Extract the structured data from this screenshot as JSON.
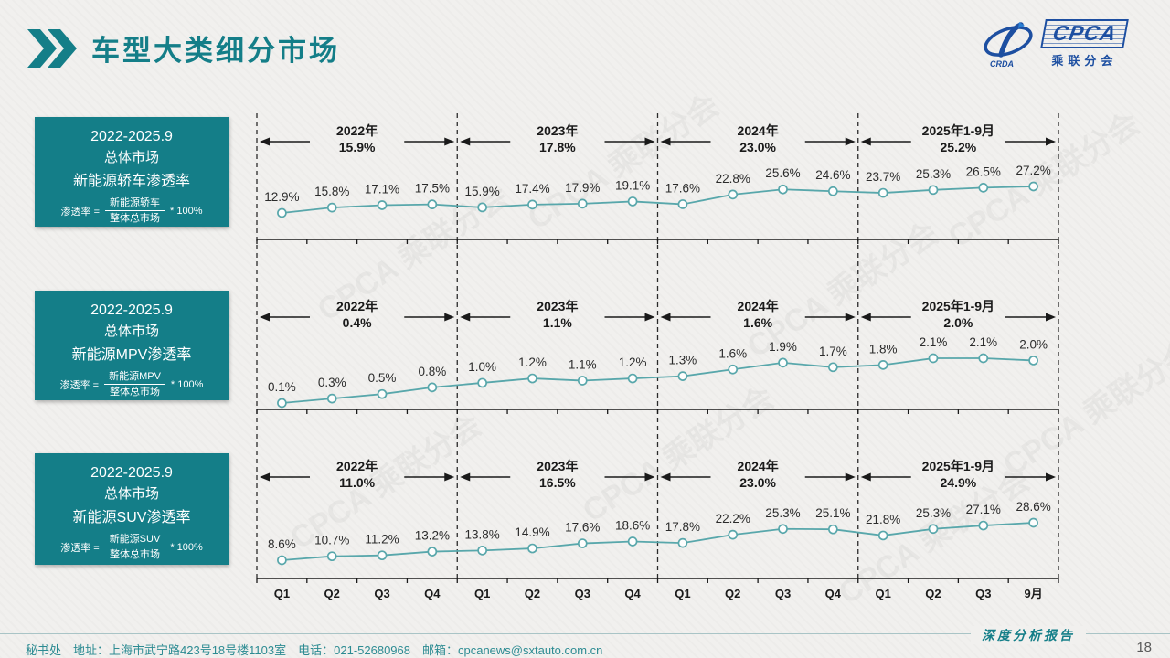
{
  "header": {
    "title": "车型大类细分市场"
  },
  "logo": {
    "text": "CPCA",
    "subtext": "乘联分会",
    "mark": "CRDA"
  },
  "watermark_text": "CPCA 乘联分会",
  "colors": {
    "accent": "#147E88",
    "line": "#58A7AB",
    "logo_blue": "#1D4FA1",
    "footer_text": "#2C8B92"
  },
  "chart_data": [
    {
      "type": "line",
      "title": "2022-2025.9 总体市场 新能源轿车渗透率",
      "panel": {
        "period": "2022-2025.9",
        "market": "总体市场",
        "metric": "新能源轿车渗透率",
        "formula_lhs": "渗透率 =",
        "formula_num": "新能源轿车",
        "formula_den": "整体总市场",
        "formula_suffix": "* 100%"
      },
      "categories": [
        "Q1",
        "Q2",
        "Q3",
        "Q4",
        "Q1",
        "Q2",
        "Q3",
        "Q4",
        "Q1",
        "Q2",
        "Q3",
        "Q4",
        "Q1",
        "Q2",
        "Q3",
        "9月"
      ],
      "values": [
        12.9,
        15.8,
        17.1,
        17.5,
        15.9,
        17.4,
        17.9,
        19.1,
        17.6,
        22.8,
        25.6,
        24.6,
        23.7,
        25.3,
        26.5,
        27.2
      ],
      "unit": "%",
      "ylim": [
        0,
        30
      ],
      "legend": "none",
      "grid": "off",
      "sections": [
        {
          "label": "2022年",
          "avg": "15.9%"
        },
        {
          "label": "2023年",
          "avg": "17.8%"
        },
        {
          "label": "2024年",
          "avg": "23.0%"
        },
        {
          "label": "2025年1-9月",
          "avg": "25.2%"
        }
      ]
    },
    {
      "type": "line",
      "title": "2022-2025.9 总体市场 新能源MPV渗透率",
      "panel": {
        "period": "2022-2025.9",
        "market": "总体市场",
        "metric": "新能源MPV渗透率",
        "formula_lhs": "渗透率 =",
        "formula_num": "新能源MPV",
        "formula_den": "整体总市场",
        "formula_suffix": "* 100%"
      },
      "categories": [
        "Q1",
        "Q2",
        "Q3",
        "Q4",
        "Q1",
        "Q2",
        "Q3",
        "Q4",
        "Q1",
        "Q2",
        "Q3",
        "Q4",
        "Q1",
        "Q2",
        "Q3",
        "9月"
      ],
      "values": [
        0.1,
        0.3,
        0.5,
        0.8,
        1.0,
        1.2,
        1.1,
        1.2,
        1.3,
        1.6,
        1.9,
        1.7,
        1.8,
        2.1,
        2.1,
        2.0
      ],
      "unit": "%",
      "ylim": [
        0,
        2.5
      ],
      "legend": "none",
      "grid": "off",
      "sections": [
        {
          "label": "2022年",
          "avg": "0.4%"
        },
        {
          "label": "2023年",
          "avg": "1.1%"
        },
        {
          "label": "2024年",
          "avg": "1.6%"
        },
        {
          "label": "2025年1-9月",
          "avg": "2.0%"
        }
      ]
    },
    {
      "type": "line",
      "title": "2022-2025.9 总体市场 新能源SUV渗透率",
      "panel": {
        "period": "2022-2025.9",
        "market": "总体市场",
        "metric": "新能源SUV渗透率",
        "formula_lhs": "渗透率 =",
        "formula_num": "新能源SUV",
        "formula_den": "整体总市场",
        "formula_suffix": "* 100%"
      },
      "categories": [
        "Q1",
        "Q2",
        "Q3",
        "Q4",
        "Q1",
        "Q2",
        "Q3",
        "Q4",
        "Q1",
        "Q2",
        "Q3",
        "Q4",
        "Q1",
        "Q2",
        "Q3",
        "9月"
      ],
      "values": [
        8.6,
        10.7,
        11.2,
        13.2,
        13.8,
        14.9,
        17.6,
        18.6,
        17.8,
        22.2,
        25.3,
        25.1,
        21.8,
        25.3,
        27.1,
        28.6
      ],
      "unit": "%",
      "ylim": [
        0,
        32
      ],
      "legend": "none",
      "grid": "off",
      "sections": [
        {
          "label": "2022年",
          "avg": "11.0%"
        },
        {
          "label": "2023年",
          "avg": "16.5%"
        },
        {
          "label": "2024年",
          "avg": "23.0%"
        },
        {
          "label": "2025年1-9月",
          "avg": "24.9%"
        }
      ]
    }
  ],
  "footer": {
    "secretariat": "秘书处",
    "address": "地址：上海市武宁路423号18号楼1103室",
    "phone": "电话：021-52680968",
    "email": "邮箱：cpcanews@sxtauto.com.cn",
    "report_label": "深度分析报告",
    "page": "18"
  }
}
